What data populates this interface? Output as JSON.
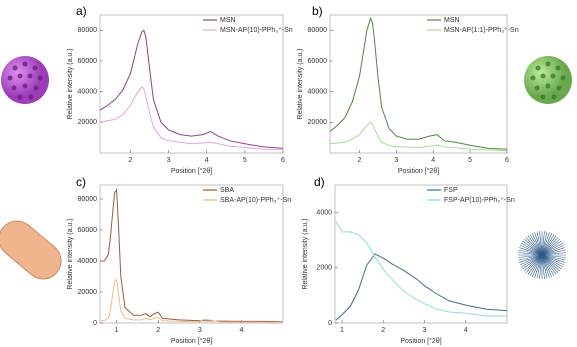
{
  "chart_data": [
    {
      "type": "line",
      "panel_label": "a)",
      "xlabel": "Position [°2θ]",
      "ylabel": "Relative intensity (a.u.)",
      "x": [
        1.2,
        1.4,
        1.6,
        1.8,
        2.0,
        2.1,
        2.2,
        2.3,
        2.35,
        2.4,
        2.5,
        2.6,
        2.8,
        3.0,
        3.3,
        3.6,
        3.9,
        4.1,
        4.3,
        4.6,
        5.0,
        5.5,
        6.0
      ],
      "series": [
        {
          "name": "MSN",
          "color": "#8e3f8e",
          "values": [
            28000,
            31000,
            35000,
            41000,
            52000,
            62000,
            72000,
            79000,
            80000,
            76000,
            55000,
            35000,
            20000,
            15000,
            12000,
            11000,
            12000,
            14000,
            11000,
            8000,
            6000,
            4000,
            3000
          ]
        },
        {
          "name": "MSN-AP(10)-PPh₃⁺-Sn",
          "color": "#e2a6e2",
          "values": [
            20000,
            21000,
            22000,
            25000,
            31000,
            36000,
            40000,
            43000,
            42000,
            37000,
            26000,
            17000,
            10000,
            8000,
            7000,
            6000,
            6500,
            7000,
            6000,
            4500,
            3500,
            2500,
            2000
          ]
        }
      ],
      "xlim": [
        1.2,
        6
      ],
      "xticks": [
        2,
        3,
        4,
        5,
        6
      ],
      "ylim": [
        0,
        90000
      ],
      "yticks": [
        20000,
        40000,
        60000,
        80000
      ]
    },
    {
      "type": "line",
      "panel_label": "b)",
      "xlabel": "Position [°2θ]",
      "ylabel": "Relative intensity (a.u.)",
      "x": [
        1.2,
        1.4,
        1.6,
        1.8,
        2.0,
        2.1,
        2.2,
        2.3,
        2.35,
        2.4,
        2.5,
        2.6,
        2.8,
        3.0,
        3.3,
        3.6,
        3.9,
        4.1,
        4.3,
        4.6,
        5.0,
        5.5,
        6.0
      ],
      "series": [
        {
          "name": "MSN",
          "color": "#4d8a3c",
          "values": [
            14000,
            18000,
            23000,
            33000,
            50000,
            65000,
            80000,
            88000,
            85000,
            75000,
            50000,
            30000,
            16000,
            11000,
            9000,
            9000,
            11000,
            12000,
            8000,
            7000,
            5000,
            3000,
            2500
          ]
        },
        {
          "name": "MSN-AP(1:1)-PPh₃⁺-Sn",
          "color": "#a6dc96",
          "values": [
            6000,
            6500,
            7000,
            9000,
            12000,
            15000,
            18000,
            20000,
            19000,
            16000,
            11000,
            7000,
            5000,
            4000,
            4000,
            3500,
            4500,
            5000,
            4000,
            3500,
            2500,
            2000,
            1500
          ]
        }
      ],
      "xlim": [
        1.2,
        6
      ],
      "xticks": [
        2,
        3,
        4,
        5,
        6
      ],
      "ylim": [
        0,
        90000
      ],
      "yticks": [
        20000,
        40000,
        60000,
        80000
      ]
    },
    {
      "type": "line",
      "panel_label": "c)",
      "xlabel": "Position [°2θ]",
      "ylabel": "Relative intensity (a.u.)",
      "x": [
        0.6,
        0.7,
        0.8,
        0.85,
        0.9,
        0.95,
        1.0,
        1.05,
        1.1,
        1.2,
        1.4,
        1.6,
        1.7,
        1.8,
        1.9,
        2.0,
        2.1,
        2.5,
        3.0,
        3.1,
        3.5,
        4,
        4.5,
        5
      ],
      "series": [
        {
          "name": "SBA",
          "color": "#9a5a3a",
          "values": [
            40000,
            40000,
            44000,
            55000,
            70000,
            84000,
            86000,
            60000,
            30000,
            10000,
            5000,
            5000,
            6000,
            4000,
            6000,
            7000,
            3000,
            2000,
            1500,
            1500,
            1200,
            1000,
            1000,
            800
          ]
        },
        {
          "name": "SBA-AP(10)-PPh₃⁺-Sn",
          "color": "#f0b98f",
          "values": [
            1500,
            1500,
            3000,
            8000,
            18000,
            27000,
            28000,
            18000,
            8000,
            3000,
            2000,
            2000,
            3000,
            2000,
            3000,
            3500,
            1500,
            1000,
            800,
            2500,
            700,
            600,
            500,
            500
          ]
        }
      ],
      "xlim": [
        0.6,
        5
      ],
      "xticks": [
        1,
        2,
        3,
        4
      ],
      "ylim": [
        0,
        89000
      ],
      "yticks": [
        0,
        20000,
        40000,
        60000,
        80000
      ]
    },
    {
      "type": "line",
      "panel_label": "d)",
      "xlabel": "Position [°2θ]",
      "ylabel": "Relative intensity (a.u.)",
      "x": [
        0.85,
        1.0,
        1.2,
        1.4,
        1.6,
        1.8,
        2.0,
        2.2,
        2.5,
        2.8,
        3.0,
        3.3,
        3.6,
        4.0,
        4.5,
        5.0
      ],
      "series": [
        {
          "name": "FSP",
          "color": "#3d6f8e",
          "values": [
            100,
            300,
            600,
            1200,
            2100,
            2500,
            2350,
            2150,
            1900,
            1600,
            1350,
            1050,
            800,
            650,
            500,
            450
          ]
        },
        {
          "name": "FSP-AP(10)-PPh₃⁺-Sn",
          "color": "#8fd9e6",
          "values": [
            3700,
            3300,
            3300,
            3200,
            2900,
            2400,
            1950,
            1600,
            1150,
            850,
            700,
            500,
            400,
            350,
            250,
            250
          ]
        }
      ],
      "xlim": [
        0.83,
        5
      ],
      "xticks": [
        1,
        2,
        3,
        4
      ],
      "ylim": [
        0,
        5000
      ],
      "yticks": [
        0,
        2000,
        4000
      ]
    }
  ]
}
